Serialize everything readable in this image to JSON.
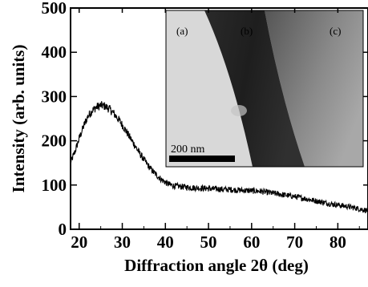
{
  "chart_data": {
    "type": "line",
    "xlabel": "Diffraction angle  2θ (deg)",
    "ylabel": "Intensity (arb. units)",
    "xlim": [
      18,
      87
    ],
    "ylim": [
      0,
      500
    ],
    "x_ticks": [
      "20",
      "30",
      "40",
      "50",
      "60",
      "70",
      "80"
    ],
    "y_ticks": [
      "0",
      "100",
      "200",
      "300",
      "400",
      "500"
    ],
    "grid": false,
    "noise_amplitude": 9,
    "series": [
      {
        "x": [
          18,
          19,
          20,
          21,
          22,
          23,
          24,
          25,
          26,
          27,
          28,
          29,
          30,
          31,
          32,
          33,
          34,
          35,
          36,
          37,
          38,
          39,
          40,
          41,
          42,
          44,
          46,
          48,
          50,
          52,
          54,
          56,
          58,
          60,
          62,
          64,
          66,
          68,
          70,
          72,
          74,
          76,
          78,
          80,
          82,
          84,
          86,
          87
        ],
        "y": [
          150,
          175,
          205,
          232,
          255,
          268,
          276,
          280,
          278,
          272,
          262,
          250,
          236,
          220,
          204,
          188,
          172,
          158,
          144,
          132,
          122,
          113,
          106,
          101,
          98,
          96,
          94,
          93,
          92,
          91,
          90,
          89,
          88,
          87,
          86,
          83,
          80,
          77,
          74,
          70,
          66,
          62,
          58,
          55,
          52,
          48,
          44,
          42
        ]
      }
    ],
    "inset": {
      "type": "TEM image",
      "labels": [
        "(a)",
        "(b)",
        "(c)"
      ],
      "scale_bar": "200 nm"
    }
  }
}
